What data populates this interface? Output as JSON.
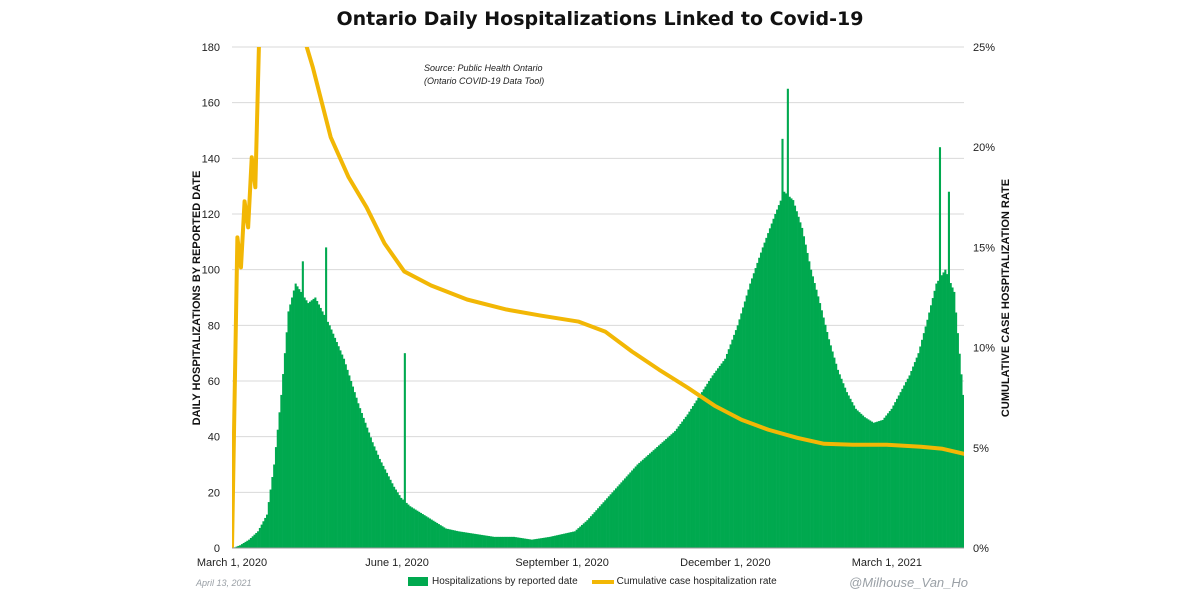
{
  "title": "Ontario Daily Hospitalizations Linked to Covid-19",
  "source_lines": [
    "Source: Public Health Ontario",
    "(Ontario COVID-19 Data Tool)"
  ],
  "footer_date": "April 13, 2021",
  "handle": "@Milhouse_Van_Ho",
  "colors": {
    "bars": "#00a94f",
    "line": "#f2b705"
  },
  "chart_data": {
    "type": "bar",
    "ylabel": "DAILY HOSPITALIZATIONS BY REPORTED DATE",
    "y2label": "CUMULATIVE CASE HOSPITALIZATION RATE",
    "ylim": [
      0,
      180
    ],
    "y2lim": [
      0,
      25
    ],
    "yticks": [
      "0",
      "20",
      "40",
      "60",
      "80",
      "100",
      "120",
      "140",
      "160",
      "180"
    ],
    "y2ticks": [
      "0%",
      "5%",
      "10%",
      "15%",
      "20%",
      "25%"
    ],
    "xlim": [
      "2020-03-01",
      "2021-04-13"
    ],
    "xticks": [
      {
        "date": "2020-03-01",
        "label": "March 1, 2020"
      },
      {
        "date": "2020-06-01",
        "label": "June 1, 2020"
      },
      {
        "date": "2020-09-01",
        "label": "September 1, 2020"
      },
      {
        "date": "2020-12-01",
        "label": "December 1, 2020"
      },
      {
        "date": "2021-03-01",
        "label": "March 1, 2021"
      }
    ],
    "grid": true,
    "legend_position": "bottom",
    "series": [
      {
        "name": "Hospitalizations by reported date",
        "type": "bar",
        "axis": "left",
        "points": [
          [
            "2020-03-01",
            0
          ],
          [
            "2020-03-05",
            1
          ],
          [
            "2020-03-10",
            3
          ],
          [
            "2020-03-15",
            6
          ],
          [
            "2020-03-20",
            12
          ],
          [
            "2020-03-24",
            30
          ],
          [
            "2020-03-28",
            55
          ],
          [
            "2020-04-01",
            85
          ],
          [
            "2020-04-05",
            95
          ],
          [
            "2020-04-08",
            92
          ],
          [
            "2020-04-12",
            88
          ],
          [
            "2020-04-16",
            90
          ],
          [
            "2020-04-20",
            85
          ],
          [
            "2020-04-24",
            80
          ],
          [
            "2020-04-28",
            74
          ],
          [
            "2020-05-02",
            68
          ],
          [
            "2020-05-06",
            60
          ],
          [
            "2020-05-10",
            52
          ],
          [
            "2020-05-14",
            45
          ],
          [
            "2020-05-18",
            38
          ],
          [
            "2020-05-22",
            32
          ],
          [
            "2020-05-26",
            27
          ],
          [
            "2020-05-30",
            22
          ],
          [
            "2020-06-03",
            18
          ],
          [
            "2020-06-08",
            15
          ],
          [
            "2020-06-13",
            13
          ],
          [
            "2020-06-18",
            11
          ],
          [
            "2020-06-23",
            9
          ],
          [
            "2020-06-28",
            7
          ],
          [
            "2020-07-05",
            6
          ],
          [
            "2020-07-15",
            5
          ],
          [
            "2020-07-25",
            4
          ],
          [
            "2020-08-05",
            4
          ],
          [
            "2020-08-15",
            3
          ],
          [
            "2020-08-25",
            4
          ],
          [
            "2020-09-01",
            5
          ],
          [
            "2020-09-08",
            6
          ],
          [
            "2020-09-15",
            10
          ],
          [
            "2020-09-22",
            15
          ],
          [
            "2020-09-29",
            20
          ],
          [
            "2020-10-06",
            25
          ],
          [
            "2020-10-13",
            30
          ],
          [
            "2020-10-20",
            34
          ],
          [
            "2020-10-27",
            38
          ],
          [
            "2020-11-03",
            42
          ],
          [
            "2020-11-10",
            48
          ],
          [
            "2020-11-17",
            55
          ],
          [
            "2020-11-24",
            62
          ],
          [
            "2020-12-01",
            68
          ],
          [
            "2020-12-08",
            80
          ],
          [
            "2020-12-15",
            95
          ],
          [
            "2020-12-22",
            108
          ],
          [
            "2020-12-29",
            120
          ],
          [
            "2021-01-03",
            128
          ],
          [
            "2021-01-08",
            125
          ],
          [
            "2021-01-13",
            115
          ],
          [
            "2021-01-18",
            100
          ],
          [
            "2021-01-23",
            88
          ],
          [
            "2021-01-28",
            75
          ],
          [
            "2021-02-02",
            64
          ],
          [
            "2021-02-07",
            56
          ],
          [
            "2021-02-12",
            50
          ],
          [
            "2021-02-17",
            47
          ],
          [
            "2021-02-22",
            45
          ],
          [
            "2021-02-27",
            46
          ],
          [
            "2021-03-04",
            50
          ],
          [
            "2021-03-09",
            56
          ],
          [
            "2021-03-14",
            62
          ],
          [
            "2021-03-19",
            70
          ],
          [
            "2021-03-24",
            82
          ],
          [
            "2021-03-29",
            95
          ],
          [
            "2021-04-03",
            100
          ],
          [
            "2021-04-08",
            92
          ],
          [
            "2021-04-13",
            55
          ]
        ],
        "peaks": [
          [
            "2020-04-09",
            103
          ],
          [
            "2020-04-22",
            108
          ],
          [
            "2020-06-05",
            70
          ],
          [
            "2021-01-02",
            147
          ],
          [
            "2021-01-05",
            165
          ],
          [
            "2021-03-31",
            144
          ],
          [
            "2021-04-05",
            128
          ]
        ]
      },
      {
        "name": "Cumulative case hospitalization rate",
        "type": "line",
        "axis": "right",
        "points": [
          [
            "2020-03-01",
            0
          ],
          [
            "2020-03-04",
            15.5
          ],
          [
            "2020-03-06",
            14
          ],
          [
            "2020-03-08",
            17.3
          ],
          [
            "2020-03-10",
            16
          ],
          [
            "2020-03-12",
            19.5
          ],
          [
            "2020-03-14",
            18
          ],
          [
            "2020-03-16",
            25
          ],
          [
            "2020-03-20",
            27
          ],
          [
            "2020-04-05",
            27
          ],
          [
            "2020-04-15",
            24
          ],
          [
            "2020-04-25",
            20.5
          ],
          [
            "2020-05-05",
            18.5
          ],
          [
            "2020-05-15",
            17
          ],
          [
            "2020-05-25",
            15.2
          ],
          [
            "2020-06-05",
            13.8
          ],
          [
            "2020-06-20",
            13.1
          ],
          [
            "2020-07-10",
            12.4
          ],
          [
            "2020-08-01",
            11.9
          ],
          [
            "2020-08-20",
            11.6
          ],
          [
            "2020-09-10",
            11.3
          ],
          [
            "2020-09-25",
            10.8
          ],
          [
            "2020-10-10",
            9.8
          ],
          [
            "2020-10-25",
            8.9
          ],
          [
            "2020-11-10",
            8
          ],
          [
            "2020-11-25",
            7.1
          ],
          [
            "2020-12-10",
            6.4
          ],
          [
            "2020-12-25",
            5.9
          ],
          [
            "2021-01-10",
            5.5
          ],
          [
            "2021-01-25",
            5.2
          ],
          [
            "2021-02-10",
            5.15
          ],
          [
            "2021-03-01",
            5.15
          ],
          [
            "2021-03-20",
            5.05
          ],
          [
            "2021-04-01",
            4.95
          ],
          [
            "2021-04-13",
            4.7
          ]
        ]
      }
    ]
  }
}
